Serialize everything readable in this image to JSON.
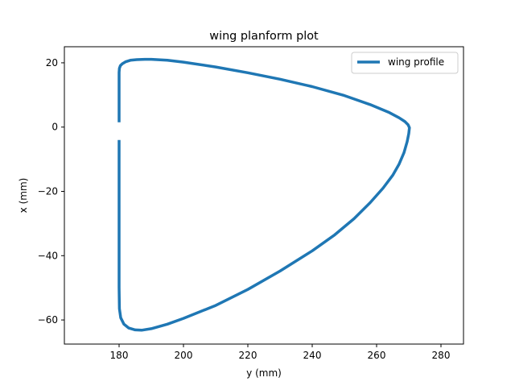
{
  "chart_data": {
    "type": "line",
    "title": "wing planform plot",
    "xlabel": "y (mm)",
    "ylabel": "x (mm)",
    "xlim": [
      163,
      287
    ],
    "ylim": [
      -67.5,
      25
    ],
    "xticks": [
      180,
      200,
      220,
      240,
      260,
      280
    ],
    "yticks": [
      20,
      0,
      -20,
      -40,
      -60
    ],
    "xtick_labels": [
      "180",
      "200",
      "220",
      "240",
      "260",
      "280"
    ],
    "ytick_labels": [
      "20",
      "0",
      "−20",
      "−40",
      "−60"
    ],
    "grid": false,
    "legend_position": "upper right",
    "series": [
      {
        "name": "wing profile",
        "color": "#1f77b4",
        "x": [
          180.0,
          180.0,
          180.1,
          180.4,
          181.0,
          182.0,
          183.5,
          185.5,
          188.0,
          190.0,
          195.0,
          200.0,
          210.0,
          220.0,
          230.0,
          240.0,
          250.0,
          258.0,
          264.0,
          267.0,
          268.8,
          269.8,
          270.2,
          270.0,
          269.5,
          268.5,
          267.0,
          265.0,
          262.0,
          258.0,
          253.0,
          247.0,
          240.0,
          230.0,
          220.0,
          210.0,
          200.0,
          195.0,
          190.0,
          187.0,
          185.0,
          183.0,
          181.5,
          180.5,
          180.1,
          180.0,
          180.0
        ],
        "y": [
          1.5,
          17.0,
          18.3,
          19.1,
          19.7,
          20.3,
          20.8,
          21.0,
          21.1,
          21.1,
          20.8,
          20.2,
          18.7,
          16.9,
          14.9,
          12.6,
          9.8,
          7.0,
          4.5,
          2.9,
          1.7,
          0.7,
          -0.2,
          -2.0,
          -4.5,
          -8.0,
          -11.5,
          -15.0,
          -19.0,
          -23.5,
          -28.5,
          -33.5,
          -38.5,
          -44.8,
          -50.5,
          -55.5,
          -59.5,
          -61.3,
          -62.7,
          -63.2,
          -63.1,
          -62.5,
          -61.3,
          -59.3,
          -56.5,
          -50.0,
          -4.0
        ]
      }
    ]
  }
}
